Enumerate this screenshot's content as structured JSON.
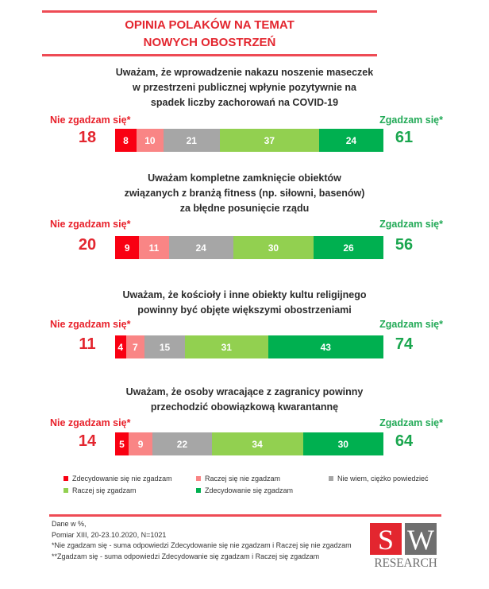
{
  "title_lines": [
    "OPINIA POLAKÓW NA TEMAT",
    "NOWYCH OBOSTRZEŃ"
  ],
  "colors": {
    "strongly_disagree": "#f90012",
    "rather_disagree": "#f98585",
    "dont_know": "#a6a6a6",
    "rather_agree": "#92d050",
    "strongly_agree": "#00b050",
    "accent_red": "#e3262f",
    "accent_green": "#21a956"
  },
  "chart_data": {
    "type": "bar",
    "orientation": "horizontal-stacked-100",
    "title": "OPINIA POLAKÓW NA TEMAT NOWYCH OBOSTRZEŃ",
    "unit": "%",
    "segment_names": [
      "Zdecydowanie się nie zgadzam",
      "Raczej się nie zgadzam",
      "Nie wiem, ciężko powiedzieć",
      "Raczej się zgadzam",
      "Zdecydowanie się zgadzam"
    ],
    "left_summary_label": "Nie zgadzam się*",
    "right_summary_label": "Zgadzam się*",
    "questions": [
      {
        "text_lines": [
          "Uważam, że wprowadzenie nakazu noszenie maseczek",
          "w przestrzeni publicznej wpłynie pozytywnie na",
          "spadek liczby zachorowań na COVID-19"
        ],
        "values": [
          8,
          10,
          21,
          37,
          24
        ],
        "disagree_total": 18,
        "agree_total": 61
      },
      {
        "text_lines": [
          "Uważam kompletne zamknięcie obiektów",
          "związanych z branżą fitness (np. siłowni, basenów)",
          "za błędne posunięcie rządu"
        ],
        "values": [
          9,
          11,
          24,
          30,
          26
        ],
        "disagree_total": 20,
        "agree_total": 56
      },
      {
        "text_lines": [
          "Uważam, że kościoły i inne obiekty kultu religijnego",
          "powinny być objęte większymi obostrzeniami"
        ],
        "values": [
          4,
          7,
          15,
          31,
          43
        ],
        "disagree_total": 11,
        "agree_total": 74
      },
      {
        "text_lines": [
          "Uważam, że osoby wracające z zagranicy powinny",
          "przechodzić obowiązkową kwarantannę"
        ],
        "values": [
          5,
          9,
          22,
          34,
          30
        ],
        "disagree_total": 14,
        "agree_total": 64
      }
    ],
    "legend": [
      {
        "label": "Zdecydowanie się nie zgadzam",
        "color_key": "strongly_disagree"
      },
      {
        "label": "Raczej się nie zgadzam",
        "color_key": "rather_disagree"
      },
      {
        "label": "Nie wiem, ciężko powiedzieć",
        "color_key": "dont_know"
      },
      {
        "label": "Raczej się zgadzam",
        "color_key": "rather_agree"
      },
      {
        "label": "Zdecydowanie się zgadzam",
        "color_key": "strongly_agree"
      }
    ]
  },
  "footer": {
    "lines": [
      "Dane w %,",
      "Pomiar XIII, 20-23.10.2020, N=1021",
      "*Nie zgadzam się - suma odpowiedzi Zdecydowanie się nie zgadzam i Raczej się nie zgadzam",
      "**Zgadzam się - suma odpowiedzi Zdecydowanie się zgadzam i Raczej się zgadzam"
    ]
  },
  "logo": {
    "letter_1": "S",
    "letter_2": "W",
    "text": "RESEARCH"
  }
}
